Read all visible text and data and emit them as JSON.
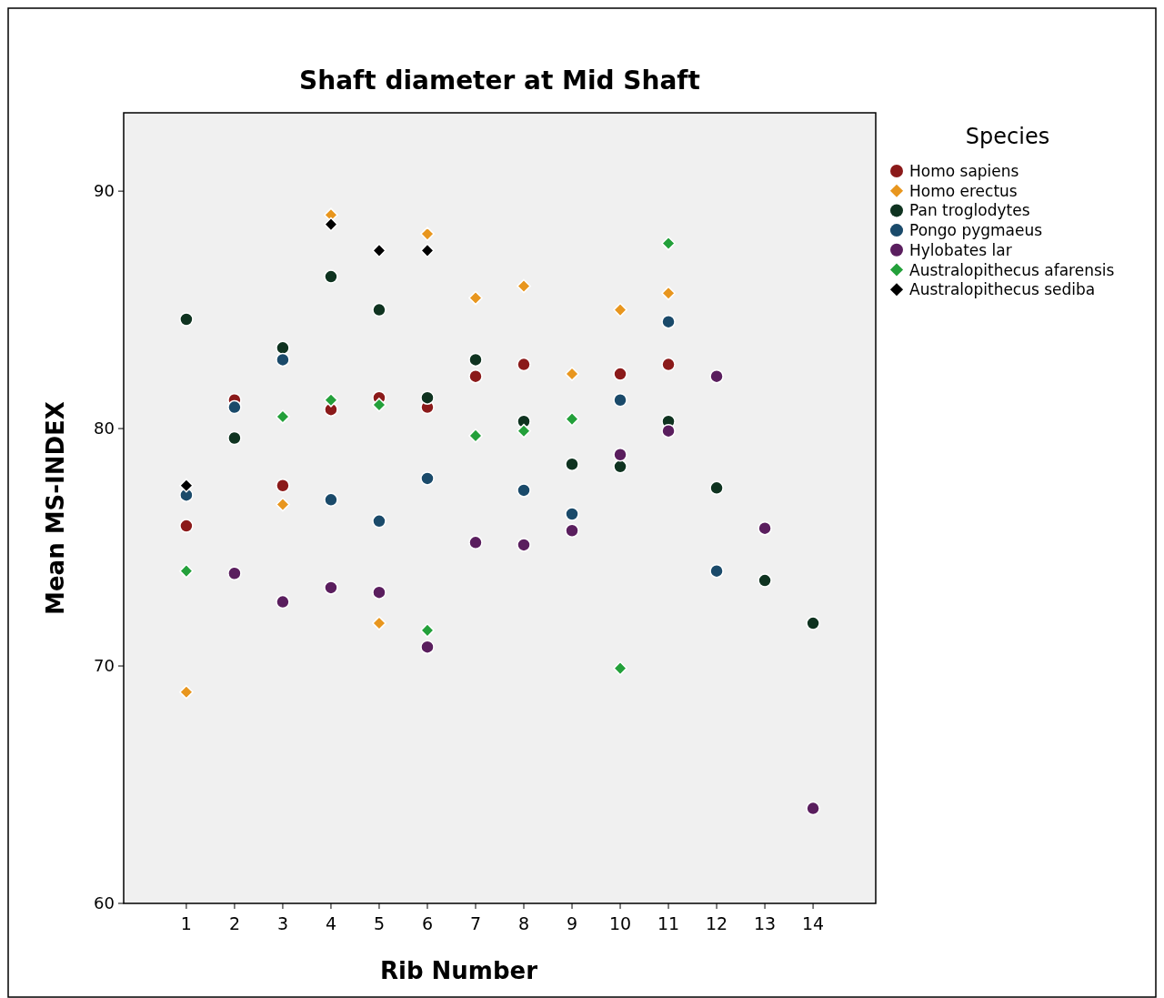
{
  "chart_data": {
    "type": "scatter",
    "title": "Shaft diameter at Mid Shaft",
    "xlabel": "Rib Number",
    "ylabel": "Mean MS-INDEX",
    "legend_title": "Species",
    "legend": "top right",
    "grid": false,
    "xlim": [
      -0.3,
      15.3
    ],
    "xticks": [
      1,
      2,
      3,
      4,
      5,
      6,
      7,
      8,
      9,
      10,
      11,
      12,
      13,
      14
    ],
    "ylim": [
      60,
      93.3
    ],
    "yticks": [
      60,
      70,
      80,
      90
    ],
    "series": [
      {
        "name": "Homo sapiens",
        "color": "#8b1a1a",
        "marker": "circle",
        "x": [
          1,
          2,
          3,
          4,
          5,
          6,
          7,
          8,
          10,
          11
        ],
        "values": [
          75.9,
          81.2,
          77.6,
          80.8,
          81.3,
          80.9,
          82.2,
          82.7,
          82.3,
          82.7
        ]
      },
      {
        "name": "Homo erectus",
        "color": "#e8961e",
        "marker": "diamond",
        "x": [
          1,
          3,
          4,
          5,
          6,
          7,
          8,
          9,
          10,
          11
        ],
        "values": [
          68.9,
          76.8,
          89.0,
          71.8,
          88.2,
          85.5,
          86.0,
          82.3,
          85.0,
          85.7
        ]
      },
      {
        "name": "Pan troglodytes",
        "color": "#0f3320",
        "marker": "circle",
        "x": [
          1,
          2,
          3,
          4,
          5,
          6,
          7,
          8,
          9,
          10,
          11,
          12,
          13,
          14
        ],
        "values": [
          84.6,
          79.6,
          83.4,
          86.4,
          85.0,
          81.3,
          82.9,
          80.3,
          78.5,
          78.4,
          80.3,
          77.5,
          73.6,
          71.8
        ]
      },
      {
        "name": "Pongo pygmaeus",
        "color": "#1a4a6a",
        "marker": "circle",
        "x": [
          1,
          2,
          3,
          4,
          5,
          6,
          8,
          9,
          10,
          11,
          12
        ],
        "values": [
          77.2,
          80.9,
          82.9,
          77.0,
          76.1,
          77.9,
          77.4,
          76.4,
          81.2,
          84.5,
          74.0
        ]
      },
      {
        "name": "Hylobates lar",
        "color": "#5a1e5e",
        "marker": "circle",
        "x": [
          2,
          3,
          4,
          5,
          6,
          7,
          8,
          9,
          10,
          11,
          12,
          13,
          14
        ],
        "values": [
          73.9,
          72.7,
          73.3,
          73.1,
          70.8,
          75.2,
          75.1,
          75.7,
          78.9,
          79.9,
          82.2,
          75.8,
          64.0
        ]
      },
      {
        "name": "Australopithecus afarensis",
        "color": "#23a03a",
        "marker": "diamond",
        "x": [
          1,
          3,
          4,
          5,
          6,
          7,
          8,
          9,
          10,
          11
        ],
        "values": [
          74.0,
          80.5,
          81.2,
          81.0,
          71.5,
          79.7,
          79.9,
          80.4,
          69.9,
          87.8
        ]
      },
      {
        "name": "Australopithecus sediba",
        "color": "#000000",
        "marker": "diamond",
        "x": [
          1,
          4,
          5,
          6
        ],
        "values": [
          77.6,
          88.6,
          87.5,
          87.5
        ]
      }
    ]
  }
}
